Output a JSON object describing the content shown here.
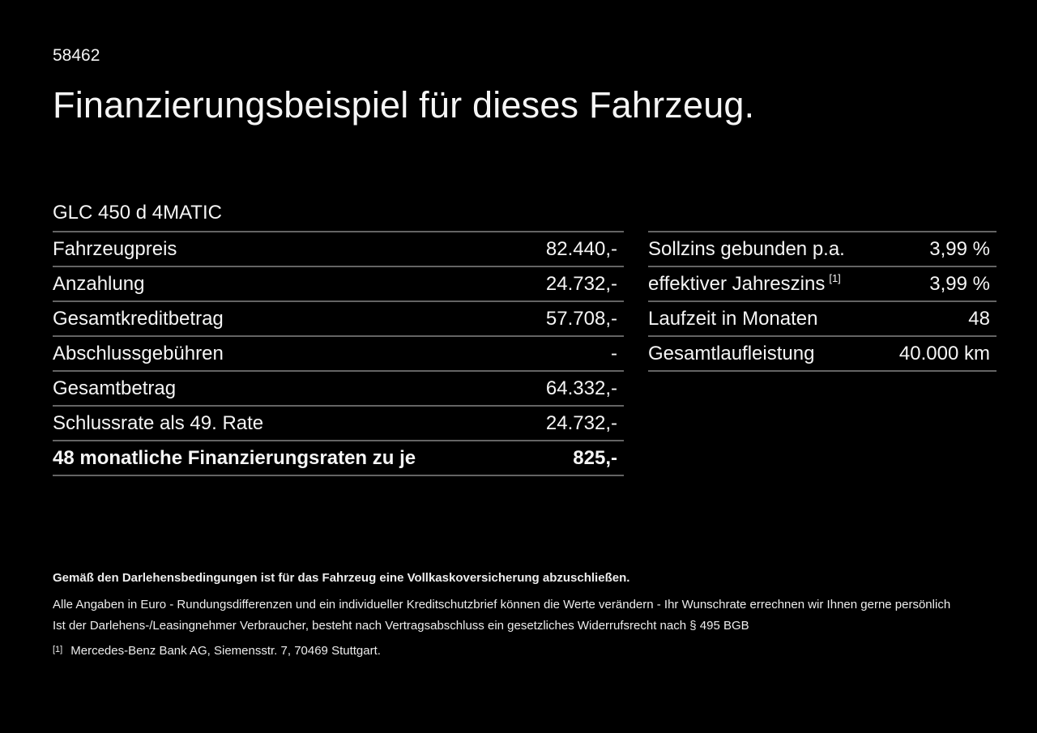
{
  "page": {
    "ref_number": "58462",
    "title": "Finanzierungsbeispiel für dieses Fahrzeug.",
    "model": "GLC 450 d 4MATIC"
  },
  "finance_table": {
    "rows": [
      {
        "label": "Fahrzeugpreis",
        "value": "82.440,-"
      },
      {
        "label": "Anzahlung",
        "value": "24.732,-"
      },
      {
        "label": "Gesamtkreditbetrag",
        "value": "57.708,-"
      },
      {
        "label": "Abschlussgebühren",
        "value": "-"
      },
      {
        "label": "Gesamtbetrag",
        "value": "64.332,-"
      },
      {
        "label": "Schlussrate als 49. Rate",
        "value": "24.732,-"
      },
      {
        "label": "48 monatliche Finanzierungsraten zu je",
        "value": "825,-"
      }
    ]
  },
  "conditions_table": {
    "rows": [
      {
        "label": "Sollzins gebunden p.a.",
        "value": "3,99 %"
      },
      {
        "label": "effektiver Jahreszins",
        "sup": "[1]",
        "value": "3,99 %"
      },
      {
        "label": "Laufzeit in Monaten",
        "value": "48"
      },
      {
        "label": "Gesamtlaufleistung",
        "value": "40.000 km"
      }
    ]
  },
  "footer": {
    "insurance_note": "Gemäß den Darlehensbedingungen ist für das Fahrzeug eine Vollkaskoversicherung abzuschließen.",
    "disclaimer_line1": "Alle Angaben in Euro - Rundungsdifferenzen und ein individueller Kreditschutzbrief können die Werte verändern - Ihr Wunschrate errechnen wir Ihnen gerne persönlich",
    "disclaimer_line2": "Ist der Darlehens-/Leasingnehmer Verbraucher, besteht nach Vertragsabschluss ein gesetzliches Widerrufsrecht nach § 495 BGB",
    "footnote_marker": "[1]",
    "footnote_text": "Mercedes-Benz Bank AG, Siemensstr. 7, 70469 Stuttgart."
  },
  "colors": {
    "background": "#000000",
    "text": "#f5f5f5",
    "divider": "#646464"
  }
}
